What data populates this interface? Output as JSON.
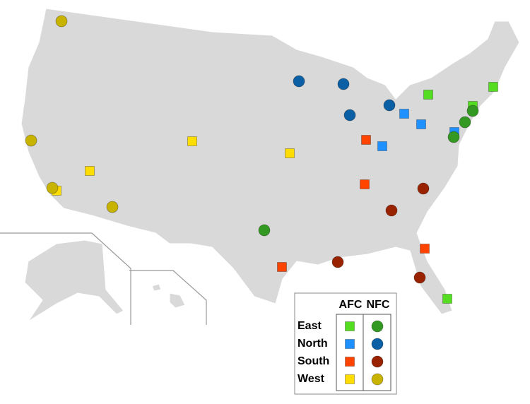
{
  "legend": {
    "columns": [
      "AFC",
      "NFC"
    ],
    "rows": [
      "East",
      "North",
      "South",
      "West"
    ]
  }
}
